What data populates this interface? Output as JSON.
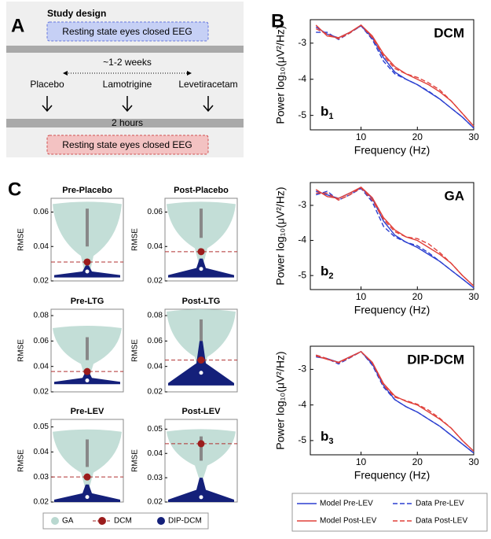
{
  "panel_a": {
    "label": "A",
    "title": "Study design",
    "session_top": "Resting state eyes closed EEG",
    "interval": "~1-2 weeks",
    "drugs": [
      "Placebo",
      "Lamotrigine",
      "Levetiracetam"
    ],
    "delay": "2 hours",
    "session_bottom": "Resting state eyes closed EEG"
  },
  "panel_b": {
    "label": "B",
    "legend": [
      {
        "name": "Model Pre-LEV",
        "color": "#2b3fd0",
        "dash": false
      },
      {
        "name": "Data Pre-LEV",
        "color": "#2b3fd0",
        "dash": true
      },
      {
        "name": "Model Post-LEV",
        "color": "#e0403a",
        "dash": false
      },
      {
        "name": "Data Post-LEV",
        "color": "#e0403a",
        "dash": true
      }
    ],
    "charts": [
      {
        "type": "line",
        "title": "DCM",
        "tag": "b",
        "tag_sub": "1",
        "x_label": "Frequency (Hz)",
        "y_label": "Power log₁₀(μV²/Hz)",
        "x": [
          2,
          4,
          6,
          8,
          10,
          12,
          14,
          16,
          18,
          20,
          22,
          24,
          26,
          28,
          30
        ],
        "xlim": [
          1,
          30
        ],
        "xticks": [
          10,
          20,
          30
        ],
        "ylim": [
          -5.4,
          -2.35
        ],
        "yticks": [
          -5,
          -4,
          -3
        ],
        "series": [
          {
            "values": [
              -2.55,
              -2.75,
              -2.85,
              -2.7,
              -2.52,
              -2.85,
              -3.4,
              -3.8,
              -4.0,
              -4.15,
              -4.35,
              -4.55,
              -4.8,
              -5.05,
              -5.35
            ]
          },
          {
            "values": [
              -2.7,
              -2.7,
              -2.9,
              -2.72,
              -2.52,
              -2.9,
              -3.5,
              -3.85,
              -4.0,
              -4.15,
              -4.33,
              -4.55,
              -4.8,
              -5.05,
              -5.35
            ]
          },
          {
            "values": [
              -2.5,
              -2.8,
              -2.85,
              -2.7,
              -2.5,
              -2.8,
              -3.3,
              -3.65,
              -3.85,
              -4.0,
              -4.15,
              -4.35,
              -4.6,
              -4.95,
              -5.3
            ]
          },
          {
            "values": [
              -2.6,
              -2.75,
              -2.88,
              -2.72,
              -2.5,
              -2.85,
              -3.35,
              -3.7,
              -3.85,
              -3.95,
              -4.1,
              -4.3,
              -4.6,
              -4.95,
              -5.3
            ]
          }
        ]
      },
      {
        "type": "line",
        "title": "GA",
        "tag": "b",
        "tag_sub": "2",
        "x_label": "Frequency (Hz)",
        "y_label": "Power log₁₀(μV²/Hz)",
        "x": [
          2,
          4,
          6,
          8,
          10,
          12,
          14,
          16,
          18,
          20,
          22,
          24,
          26,
          28,
          30
        ],
        "xlim": [
          1,
          30
        ],
        "xticks": [
          10,
          20,
          30
        ],
        "ylim": [
          -5.4,
          -2.35
        ],
        "yticks": [
          -5,
          -4,
          -3
        ],
        "series": [
          {
            "values": [
              -2.6,
              -2.7,
              -2.8,
              -2.65,
              -2.5,
              -2.8,
              -3.45,
              -3.85,
              -4.05,
              -4.2,
              -4.4,
              -4.6,
              -4.85,
              -5.1,
              -5.35
            ]
          },
          {
            "values": [
              -2.7,
              -2.6,
              -2.85,
              -2.7,
              -2.52,
              -2.9,
              -3.6,
              -3.9,
              -4.05,
              -4.15,
              -4.35,
              -4.6,
              -4.85,
              -5.1,
              -5.35
            ]
          },
          {
            "values": [
              -2.55,
              -2.75,
              -2.8,
              -2.65,
              -2.48,
              -2.78,
              -3.35,
              -3.7,
              -3.9,
              -4.0,
              -4.2,
              -4.4,
              -4.65,
              -5.0,
              -5.3
            ]
          },
          {
            "values": [
              -2.65,
              -2.65,
              -2.85,
              -2.7,
              -2.5,
              -2.85,
              -3.4,
              -3.75,
              -3.9,
              -3.95,
              -4.1,
              -4.35,
              -4.65,
              -5.0,
              -5.3
            ]
          }
        ]
      },
      {
        "type": "line",
        "title": "DIP-DCM",
        "tag": "b",
        "tag_sub": "3",
        "x_label": "Frequency (Hz)",
        "y_label": "Power log₁₀(μV²/Hz)",
        "x": [
          2,
          4,
          6,
          8,
          10,
          12,
          14,
          16,
          18,
          20,
          22,
          24,
          26,
          28,
          30
        ],
        "xlim": [
          1,
          30
        ],
        "xticks": [
          10,
          20,
          30
        ],
        "ylim": [
          -5.4,
          -2.35
        ],
        "yticks": [
          -5,
          -4,
          -3
        ],
        "series": [
          {
            "values": [
              -2.65,
              -2.7,
              -2.8,
              -2.65,
              -2.5,
              -2.85,
              -3.45,
              -3.85,
              -4.05,
              -4.2,
              -4.4,
              -4.6,
              -4.85,
              -5.1,
              -5.35
            ]
          },
          {
            "values": [
              -2.6,
              -2.7,
              -2.85,
              -2.68,
              -2.5,
              -2.88,
              -3.5,
              -3.85,
              -4.05,
              -4.2,
              -4.4,
              -4.6,
              -4.85,
              -5.1,
              -5.35
            ]
          },
          {
            "values": [
              -2.62,
              -2.72,
              -2.8,
              -2.65,
              -2.5,
              -2.8,
              -3.4,
              -3.75,
              -3.9,
              -4.0,
              -4.2,
              -4.4,
              -4.65,
              -5.0,
              -5.3
            ]
          },
          {
            "values": [
              -2.6,
              -2.7,
              -2.82,
              -2.67,
              -2.5,
              -2.82,
              -3.45,
              -3.78,
              -3.88,
              -3.98,
              -4.15,
              -4.38,
              -4.65,
              -5.0,
              -5.3
            ]
          }
        ]
      }
    ]
  },
  "panel_c": {
    "label": "C",
    "y_label": "RMSE",
    "legend": [
      {
        "name": "GA",
        "color": "#b9d8d0"
      },
      {
        "name": "DCM",
        "color": "#9b1c1c"
      },
      {
        "name": "DIP-DCM",
        "color": "#14207a"
      }
    ],
    "charts": [
      {
        "type": "violin",
        "title": "Pre-Placebo",
        "ylim": [
          0.02,
          0.068
        ],
        "yticks": [
          0.02,
          0.04,
          0.06
        ],
        "ga_range": [
          0.024,
          0.066
        ],
        "ga_iqr": [
          0.04,
          0.062
        ],
        "dip_range": [
          0.022,
          0.029
        ],
        "dip_median": 0.0255,
        "dcm": 0.031
      },
      {
        "type": "violin",
        "title": "Post-Placebo",
        "ylim": [
          0.02,
          0.068
        ],
        "yticks": [
          0.02,
          0.04,
          0.06
        ],
        "ga_range": [
          0.03,
          0.066
        ],
        "ga_iqr": [
          0.045,
          0.062
        ],
        "dip_range": [
          0.022,
          0.033
        ],
        "dip_median": 0.027,
        "dcm": 0.037
      },
      {
        "type": "violin",
        "title": "Pre-LTG",
        "ylim": [
          0.02,
          0.085
        ],
        "yticks": [
          0.02,
          0.04,
          0.06,
          0.08
        ],
        "ga_range": [
          0.032,
          0.072
        ],
        "ga_iqr": [
          0.045,
          0.063
        ],
        "dip_range": [
          0.026,
          0.036
        ],
        "dip_median": 0.029,
        "dcm": 0.036
      },
      {
        "type": "violin",
        "title": "Post-LTG",
        "ylim": [
          0.02,
          0.085
        ],
        "yticks": [
          0.02,
          0.04,
          0.06,
          0.08
        ],
        "ga_range": [
          0.035,
          0.085
        ],
        "ga_iqr": [
          0.055,
          0.077
        ],
        "dip_range": [
          0.025,
          0.06
        ],
        "dip_median": 0.035,
        "dcm": 0.045
      },
      {
        "type": "violin",
        "title": "Pre-LEV",
        "ylim": [
          0.02,
          0.053
        ],
        "yticks": [
          0.02,
          0.03,
          0.04,
          0.05
        ],
        "ga_range": [
          0.026,
          0.049
        ],
        "ga_iqr": [
          0.034,
          0.045
        ],
        "dip_range": [
          0.02,
          0.027
        ],
        "dip_median": 0.022,
        "dcm": 0.03
      },
      {
        "type": "violin",
        "title": "Post-LEV",
        "ylim": [
          0.02,
          0.054
        ],
        "yticks": [
          0.02,
          0.03,
          0.04,
          0.05
        ],
        "ga_range": [
          0.03,
          0.05
        ],
        "ga_iqr": [
          0.037,
          0.047
        ],
        "dip_range": [
          0.02,
          0.03
        ],
        "dip_median": 0.022,
        "dcm": 0.044
      }
    ]
  }
}
